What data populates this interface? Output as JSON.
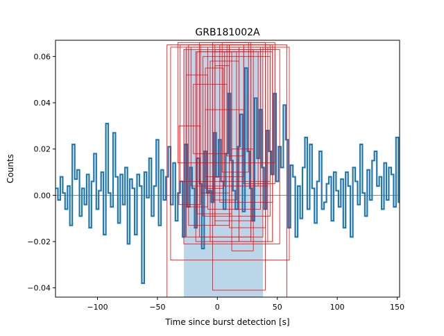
{
  "chart_data": {
    "type": "line",
    "title": "GRB181002A",
    "xlabel": "Time since burst detection [s]",
    "ylabel": "Counts",
    "xlim": [
      -135,
      152
    ],
    "ylim": [
      -0.044,
      0.067
    ],
    "xticks": [
      -100,
      -50,
      0,
      50,
      100,
      150
    ],
    "xtick_labels": [
      "−100",
      "−50",
      "0",
      "50",
      "100",
      "150"
    ],
    "yticks": [
      -0.04,
      -0.02,
      0.0,
      0.02,
      0.04,
      0.06
    ],
    "ytick_labels": [
      "−0.04",
      "−0.02",
      "0.00",
      "0.02",
      "0.04",
      "0.06"
    ],
    "grid": false,
    "colors": {
      "series": "#1f77b4",
      "highlight": "#1f77b4",
      "boxes": "#ff0000",
      "baseline": "#7f7f7f"
    },
    "highlight_region": {
      "x0": -28,
      "x1": 38,
      "y0": -0.044,
      "y1": 0.063
    },
    "baseline": 0.0,
    "series": [
      {
        "x": [
          -135,
          -133,
          -131,
          -129,
          -127,
          -125,
          -123,
          -121,
          -119,
          -117,
          -115,
          -113,
          -111,
          -109,
          -107,
          -105,
          -103,
          -101,
          -99,
          -97,
          -95,
          -93,
          -91,
          -89,
          -87,
          -85,
          -83,
          -81,
          -79,
          -77,
          -75,
          -73,
          -71,
          -69,
          -67,
          -65,
          -63,
          -61,
          -59,
          -57,
          -55,
          -53,
          -51,
          -49,
          -47,
          -45,
          -43,
          -41,
          -39,
          -37,
          -35,
          -33,
          -31,
          -29,
          -27,
          -25,
          -23,
          -21,
          -19,
          -17,
          -15,
          -13,
          -11,
          -9,
          -7,
          -5,
          -3,
          -1,
          1,
          3,
          5,
          7,
          9,
          11,
          13,
          15,
          17,
          19,
          21,
          23,
          25,
          27,
          29,
          31,
          33,
          35,
          37,
          39,
          41,
          43,
          45,
          47,
          49,
          51,
          53,
          55,
          57,
          59,
          61,
          63,
          65,
          67,
          69,
          71,
          73,
          75,
          77,
          79,
          81,
          83,
          85,
          87,
          89,
          91,
          93,
          95,
          97,
          99,
          101,
          103,
          105,
          107,
          109,
          111,
          113,
          115,
          117,
          119,
          121,
          123,
          125,
          127,
          129,
          131,
          133,
          135,
          137,
          139,
          141,
          143,
          145,
          147,
          149,
          151
        ],
        "values": [
          0.003,
          -0.002,
          0.008,
          0.001,
          -0.006,
          0.004,
          -0.013,
          0.022,
          0.007,
          0.011,
          -0.009,
          0.003,
          -0.004,
          0.009,
          -0.014,
          0.006,
          0.018,
          -0.006,
          0.002,
          0.01,
          -0.017,
          0.031,
          0.001,
          -0.005,
          0.027,
          0.008,
          -0.012,
          0.009,
          -0.004,
          0.012,
          -0.021,
          0.007,
          0.003,
          -0.017,
          0.009,
          0.004,
          -0.038,
          0.01,
          -0.001,
          0.016,
          -0.009,
          0.004,
          0.024,
          -0.013,
          0.011,
          -0.002,
          0.008,
          0.021,
          -0.004,
          0.014,
          -0.011,
          0.001,
          0.006,
          -0.018,
          0.022,
          -0.005,
          0.012,
          0.003,
          -0.014,
          0.016,
          0.005,
          -0.023,
          0.019,
          0.001,
          0.002,
          -0.003,
          0.027,
          0.008,
          0.024,
          0.006,
          -0.006,
          0.018,
          0.044,
          0.015,
          0.002,
          -0.006,
          0.021,
          0.035,
          -0.007,
          0.055,
          0.019,
          0.003,
          -0.011,
          0.042,
          0.016,
          0.037,
          0.012,
          -0.006,
          0.028,
          0.019,
          0.009,
          0.044,
          0.006,
          0.021,
          0.012,
          0.039,
          0.024,
          -0.014,
          0.013,
          0.008,
          -0.018,
          0.004,
          -0.01,
          0.012,
          0.025,
          -0.006,
          0.022,
          0.003,
          -0.012,
          0.006,
          0.019,
          -0.006,
          -0.003,
          0.005,
          0.008,
          -0.011,
          0.01,
          0.002,
          -0.005,
          0.007,
          -0.014,
          0.01,
          0.004,
          -0.018,
          0.012,
          0.006,
          -0.004,
          0.022,
          0.001,
          -0.009,
          0.011,
          -0.002,
          0.015,
          0.019,
          0.004,
          0.008,
          -0.006,
          0.014,
          -0.002,
          0.012,
          0.009,
          -0.005,
          0.025,
          -0.003
        ]
      }
    ],
    "boxes": [
      {
        "x0": -42,
        "x1": 58,
        "y0": -0.044,
        "y1": 0.065
      },
      {
        "x0": -39,
        "x1": 60,
        "y0": -0.028,
        "y1": 0.064
      },
      {
        "x0": -33,
        "x1": 48,
        "y0": 0.014,
        "y1": 0.066
      },
      {
        "x0": -28,
        "x1": 52,
        "y0": -0.021,
        "y1": 0.063
      },
      {
        "x0": -31,
        "x1": 44,
        "y0": 0.006,
        "y1": 0.065
      },
      {
        "x0": -26,
        "x1": 38,
        "y0": -0.018,
        "y1": 0.064
      },
      {
        "x0": -32,
        "x1": -14,
        "y0": -0.004,
        "y1": 0.03
      },
      {
        "x0": -24,
        "x1": -2,
        "y0": -0.013,
        "y1": 0.065
      },
      {
        "x0": -18,
        "x1": 46,
        "y0": -0.02,
        "y1": 0.062
      },
      {
        "x0": -22,
        "x1": 42,
        "y0": 0.004,
        "y1": 0.064
      },
      {
        "x0": -15,
        "x1": 28,
        "y0": -0.018,
        "y1": 0.066
      },
      {
        "x0": -12,
        "x1": 44,
        "y0": -0.009,
        "y1": 0.06
      },
      {
        "x0": -20,
        "x1": 8,
        "y0": 0.018,
        "y1": 0.048
      },
      {
        "x0": -8,
        "x1": 36,
        "y0": -0.006,
        "y1": 0.064
      },
      {
        "x0": -4,
        "x1": 40,
        "y0": -0.041,
        "y1": 0.066
      },
      {
        "x0": -10,
        "x1": 22,
        "y0": 0.008,
        "y1": 0.037
      },
      {
        "x0": -2,
        "x1": 30,
        "y0": -0.011,
        "y1": 0.063
      },
      {
        "x0": 2,
        "x1": 46,
        "y0": -0.003,
        "y1": 0.065
      },
      {
        "x0": -6,
        "x1": 18,
        "y0": -0.02,
        "y1": 0.058
      },
      {
        "x0": -14,
        "x1": 10,
        "y0": 0.001,
        "y1": 0.065
      },
      {
        "x0": -26,
        "x1": -8,
        "y0": -0.005,
        "y1": 0.052
      },
      {
        "x0": 6,
        "x1": 34,
        "y0": 0.004,
        "y1": 0.062
      },
      {
        "x0": 10,
        "x1": 40,
        "y0": -0.014,
        "y1": 0.064
      },
      {
        "x0": 12,
        "x1": 30,
        "y0": -0.024,
        "y1": 0.02
      },
      {
        "x0": -17,
        "x1": 12,
        "y0": -0.008,
        "y1": 0.062
      },
      {
        "x0": -2,
        "x1": 10,
        "y0": -0.013,
        "y1": 0.056
      },
      {
        "x0": 4,
        "x1": 26,
        "y0": 0.01,
        "y1": 0.066
      },
      {
        "x0": -10,
        "x1": 5,
        "y0": 0.003,
        "y1": 0.055
      },
      {
        "x0": 18,
        "x1": 42,
        "y0": -0.02,
        "y1": 0.064
      },
      {
        "x0": 22,
        "x1": 48,
        "y0": 0.005,
        "y1": 0.064
      },
      {
        "x0": 28,
        "x1": 46,
        "y0": -0.02,
        "y1": 0.063
      },
      {
        "x0": -4,
        "x1": 16,
        "y0": -0.002,
        "y1": 0.062
      },
      {
        "x0": 8,
        "x1": 22,
        "y0": 0.017,
        "y1": 0.065
      }
    ]
  }
}
